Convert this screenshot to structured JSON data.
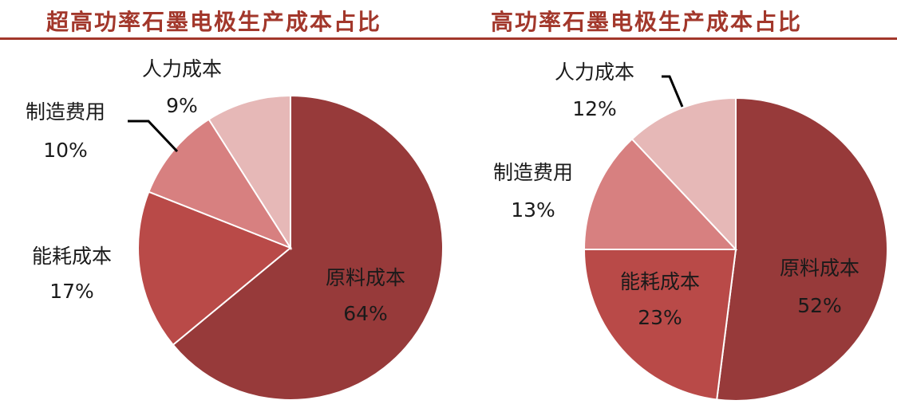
{
  "chart_data": [
    {
      "type": "pie",
      "title": "超高功率石墨电极生产成本占比",
      "slices": [
        {
          "label": "原料成本",
          "value": 64,
          "value_label": "64%",
          "color": "#973a3a"
        },
        {
          "label": "能耗成本",
          "value": 17,
          "value_label": "17%",
          "color": "#b94a48"
        },
        {
          "label": "制造费用",
          "value": 10,
          "value_label": "10%",
          "color": "#d78080"
        },
        {
          "label": "人力成本",
          "value": 9,
          "value_label": "9%",
          "color": "#e6b8b7"
        }
      ]
    },
    {
      "type": "pie",
      "title": "高功率石墨电极生产成本占比",
      "slices": [
        {
          "label": "原料成本",
          "value": 52,
          "value_label": "52%",
          "color": "#973a3a"
        },
        {
          "label": "能耗成本",
          "value": 23,
          "value_label": "23%",
          "color": "#b94a48"
        },
        {
          "label": "制造费用",
          "value": 13,
          "value_label": "13%",
          "color": "#d78080"
        },
        {
          "label": "人力成本",
          "value": 12,
          "value_label": "12%",
          "color": "#e6b8b7"
        }
      ]
    }
  ]
}
